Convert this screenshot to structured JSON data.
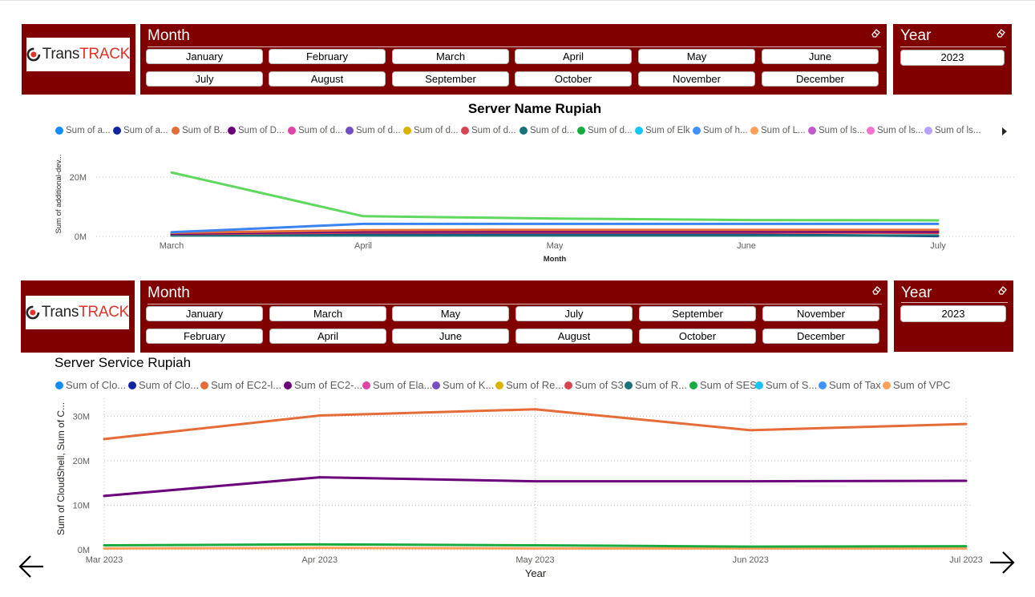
{
  "colors": {
    "accent": "#800000"
  },
  "logo": {
    "text_trans": "Trans",
    "text_track": "TRACK"
  },
  "top_panel": {
    "month_title": "Month",
    "months": [
      "January",
      "February",
      "March",
      "April",
      "May",
      "June",
      "July",
      "August",
      "September",
      "October",
      "November",
      "December"
    ],
    "year_title": "Year",
    "year_value": "2023"
  },
  "chart1": {
    "title": "Server Name Rupiah",
    "legend": [
      {
        "label": "Sum of a...",
        "color": "#118DFF"
      },
      {
        "label": "Sum of a...",
        "color": "#12239E"
      },
      {
        "label": "Sum of B...",
        "color": "#E66C37"
      },
      {
        "label": "Sum of D...",
        "color": "#6B007B"
      },
      {
        "label": "Sum of d...",
        "color": "#E044A7"
      },
      {
        "label": "Sum of d...",
        "color": "#744EC2"
      },
      {
        "label": "Sum of d...",
        "color": "#D9B300"
      },
      {
        "label": "Sum of d...",
        "color": "#D64550"
      },
      {
        "label": "Sum of d...",
        "color": "#197278"
      },
      {
        "label": "Sum of d...",
        "color": "#1AAB40"
      },
      {
        "label": "Sum of Elk",
        "color": "#15C6F4"
      },
      {
        "label": "Sum of h...",
        "color": "#4092FF"
      },
      {
        "label": "Sum of L...",
        "color": "#FFA058"
      },
      {
        "label": "Sum of ls...",
        "color": "#BE5DC9"
      },
      {
        "label": "Sum of ls...",
        "color": "#F472D0"
      },
      {
        "label": "Sum of ls...",
        "color": "#B5A1FF"
      }
    ],
    "legend_more_icon": "triangle-right-icon",
    "chart_data": {
      "type": "line",
      "categories": [
        "March",
        "April",
        "May",
        "June",
        "July"
      ],
      "xlabel": "Month",
      "ylabel": "Sum of additional-dev...",
      "yticks": [
        "0M",
        "20M"
      ],
      "ylim": [
        0,
        24000000
      ],
      "grid": true,
      "series": [
        {
          "color": "#5ED85E",
          "values": [
            21500000,
            6800000,
            6000000,
            5500000,
            5400000
          ]
        },
        {
          "color": "#3B84F0",
          "values": [
            1400000,
            4200000,
            4200000,
            4200000,
            4200000
          ]
        },
        {
          "color": "#E66C37",
          "values": [
            1200000,
            2100000,
            2200000,
            2200000,
            2200000
          ]
        },
        {
          "color": "#6B007B",
          "values": [
            900000,
            1700000,
            1700000,
            1700000,
            1600000
          ]
        },
        {
          "color": "#D64550",
          "values": [
            800000,
            1300000,
            1300000,
            1300000,
            1200000
          ]
        },
        {
          "color": "#197278",
          "values": [
            300000,
            300000,
            300000,
            300000,
            300000
          ]
        },
        {
          "color": "#12239E",
          "values": [
            500000,
            900000,
            700000,
            600000,
            100000
          ]
        }
      ]
    }
  },
  "bottom_panel": {
    "month_title": "Month",
    "months": [
      "January",
      "February",
      "March",
      "April",
      "May",
      "June",
      "July",
      "August",
      "September",
      "October",
      "November",
      "December"
    ],
    "year_title": "Year",
    "year_value": "2023"
  },
  "chart2": {
    "title": "Server Service Rupiah",
    "legend": [
      {
        "label": "Sum of Clo...",
        "color": "#118DFF"
      },
      {
        "label": "Sum of Clo...",
        "color": "#12239E"
      },
      {
        "label": "Sum of EC2-l...",
        "color": "#E66C37"
      },
      {
        "label": "Sum of EC2-...",
        "color": "#6B007B"
      },
      {
        "label": "Sum of Ela...",
        "color": "#E044A7"
      },
      {
        "label": "Sum of K...",
        "color": "#744EC2"
      },
      {
        "label": "Sum of Re...",
        "color": "#D9B300"
      },
      {
        "label": "Sum of S3",
        "color": "#D64550"
      },
      {
        "label": "Sum of R...",
        "color": "#197278"
      },
      {
        "label": "Sum of SES",
        "color": "#1AAB40"
      },
      {
        "label": "Sum of S...",
        "color": "#15C6F4"
      },
      {
        "label": "Sum of Tax",
        "color": "#4092FF"
      },
      {
        "label": "Sum of VPC",
        "color": "#FFA058"
      }
    ],
    "chart_data": {
      "type": "line",
      "categories": [
        "Mar 2023",
        "Apr 2023",
        "May 2023",
        "Jun 2023",
        "Jul 2023"
      ],
      "xlabel": "Year",
      "ylabel": "Sum of CloudShell, Sum of C...",
      "yticks": [
        "0M",
        "10M",
        "20M",
        "30M"
      ],
      "ylim": [
        0,
        33000000
      ],
      "grid": true,
      "series": [
        {
          "color": "#E66C37",
          "values": [
            24900000,
            30200000,
            31600000,
            26900000,
            28300000
          ]
        },
        {
          "color": "#6B007B",
          "values": [
            12100000,
            16300000,
            15400000,
            15400000,
            15500000
          ]
        },
        {
          "color": "#1AAB40",
          "values": [
            1000000,
            1200000,
            1000000,
            700000,
            800000
          ]
        },
        {
          "color": "#FFA058",
          "values": [
            300000,
            400000,
            300000,
            300000,
            300000
          ]
        }
      ]
    }
  },
  "nav": {
    "prev_icon": "arrow-left-icon",
    "next_icon": "arrow-right-icon"
  }
}
